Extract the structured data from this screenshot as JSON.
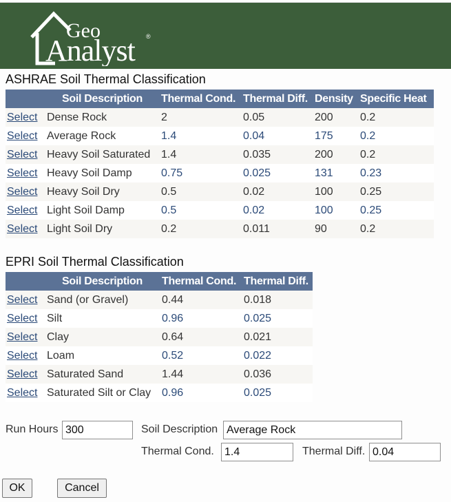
{
  "logo": {
    "word1": "Geo",
    "word2": "Analyst",
    "mark": "®"
  },
  "ashrae": {
    "title": "ASHRAE Soil Thermal Classification",
    "headers": [
      "",
      "Soil Description",
      "Thermal Cond.",
      "Thermal Diff.",
      "Density",
      "Specific Heat"
    ],
    "rows": [
      {
        "select": "Select",
        "desc": "Dense Rock",
        "cond": "2",
        "diff": "0.05",
        "density": "200",
        "heat": "0.2"
      },
      {
        "select": "Select",
        "desc": "Average Rock",
        "cond": "1.4",
        "diff": "0.04",
        "density": "175",
        "heat": "0.2"
      },
      {
        "select": "Select",
        "desc": "Heavy Soil Saturated",
        "cond": "1.4",
        "diff": "0.035",
        "density": "200",
        "heat": "0.2"
      },
      {
        "select": "Select",
        "desc": "Heavy Soil Damp",
        "cond": "0.75",
        "diff": "0.025",
        "density": "131",
        "heat": "0.23"
      },
      {
        "select": "Select",
        "desc": "Heavy Soil Dry",
        "cond": "0.5",
        "diff": "0.02",
        "density": "100",
        "heat": "0.25"
      },
      {
        "select": "Select",
        "desc": "Light Soil Damp",
        "cond": "0.5",
        "diff": "0.02",
        "density": "100",
        "heat": "0.25"
      },
      {
        "select": "Select",
        "desc": "Light Soil Dry",
        "cond": "0.2",
        "diff": "0.011",
        "density": "90",
        "heat": "0.2"
      }
    ]
  },
  "epri": {
    "title": "EPRI Soil Thermal Classification",
    "headers": [
      "",
      "Soil Description",
      "Thermal Cond.",
      "Thermal Diff."
    ],
    "rows": [
      {
        "select": "Select",
        "desc": "Sand (or Gravel)",
        "cond": "0.44",
        "diff": "0.018"
      },
      {
        "select": "Select",
        "desc": "Silt",
        "cond": "0.96",
        "diff": "0.025"
      },
      {
        "select": "Select",
        "desc": "Clay",
        "cond": "0.64",
        "diff": "0.021"
      },
      {
        "select": "Select",
        "desc": "Loam",
        "cond": "0.52",
        "diff": "0.022"
      },
      {
        "select": "Select",
        "desc": "Saturated Sand",
        "cond": "1.44",
        "diff": "0.036"
      },
      {
        "select": "Select",
        "desc": "Saturated Silt or Clay",
        "cond": "0.96",
        "diff": "0.025"
      }
    ]
  },
  "form": {
    "run_hours_label": "Run Hours",
    "run_hours_value": "300",
    "soil_desc_label": "Soil Description",
    "soil_desc_value": "Average Rock",
    "thermal_cond_label": "Thermal Cond.",
    "thermal_cond_value": "1.4",
    "thermal_diff_label": "Thermal Diff.",
    "thermal_diff_value": "0.04"
  },
  "buttons": {
    "ok": "OK",
    "cancel": "Cancel"
  },
  "colors": {
    "banner": "#3c5e3a",
    "header": "#5b7296",
    "link": "#2b4a78"
  }
}
